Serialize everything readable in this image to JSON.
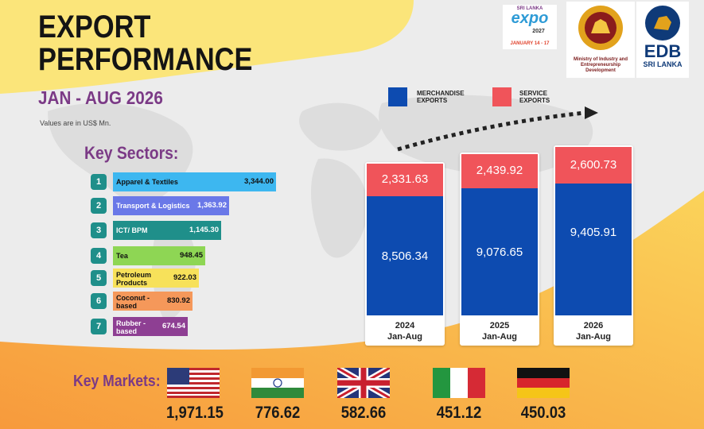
{
  "header": {
    "title_line1": "EXPORT",
    "title_line2": "PERFORMANCE",
    "period": "JAN - AUG 2026",
    "note": "Values are in US$ Mn."
  },
  "logos": {
    "expo": {
      "line1": "SRI LANKA",
      "main": "expo",
      "year": "2027",
      "dates": "JANUARY 14 - 17"
    },
    "ministry": "Ministry of Industry and Entrepreneurship Development",
    "edb": {
      "main": "EDB",
      "sub": "SRI LANKA"
    }
  },
  "key_sectors": {
    "title": "Key Sectors:",
    "items": [
      {
        "rank": "1",
        "label": "Apparel & Textiles",
        "value": "3,344.00",
        "color": "#3db7f0"
      },
      {
        "rank": "2",
        "label": "Transport & Logistics",
        "value": "1,363.92",
        "color": "#6a78e8"
      },
      {
        "rank": "3",
        "label": "ICT/ BPM",
        "value": "1,145.30",
        "color": "#1f8f8a"
      },
      {
        "rank": "4",
        "label": "Tea",
        "value": "948.45",
        "color": "#8ed654"
      },
      {
        "rank": "5",
        "label": "Petroleum Products",
        "value": "922.03",
        "color": "#f7e15a"
      },
      {
        "rank": "6",
        "label": "Coconut - based",
        "value": "830.92",
        "color": "#f5985a"
      },
      {
        "rank": "7",
        "label": "Rubber - based",
        "value": "674.54",
        "color": "#8e3f93"
      }
    ]
  },
  "legend": {
    "merchandise": "MERCHANDISE EXPORTS",
    "service": "SERVICE EXPORTS",
    "merchandise_color": "#0d4bb0",
    "service_color": "#f0545a"
  },
  "chart_data": {
    "type": "bar",
    "stacked": true,
    "categories": [
      "2024 Jan-Aug",
      "2025 Jan-Aug",
      "2026 Jan-Aug"
    ],
    "series": [
      {
        "name": "MERCHANDISE EXPORTS",
        "values": [
          8506.34,
          9076.65,
          9405.91
        ],
        "labels": [
          "8,506.34",
          "9,076.65",
          "9,405.91"
        ]
      },
      {
        "name": "SERVICE EXPORTS",
        "values": [
          2331.63,
          2439.92,
          2600.73
        ],
        "labels": [
          "2,331.63",
          "2,439.92",
          "2,600.73"
        ]
      }
    ],
    "year_labels": [
      {
        "year": "2024",
        "period": "Jan-Aug"
      },
      {
        "year": "2025",
        "period": "Jan-Aug"
      },
      {
        "year": "2026",
        "period": "Jan-Aug"
      }
    ],
    "legend_position": "top"
  },
  "key_markets": {
    "title": "Key Markets:",
    "items": [
      {
        "flag": "usa-flag",
        "value": "1,971.15"
      },
      {
        "flag": "india-flag",
        "value": "776.62"
      },
      {
        "flag": "uk-flag",
        "value": "582.66"
      },
      {
        "flag": "italy-flag",
        "value": "451.12"
      },
      {
        "flag": "germany-flag",
        "value": "450.03"
      }
    ]
  }
}
